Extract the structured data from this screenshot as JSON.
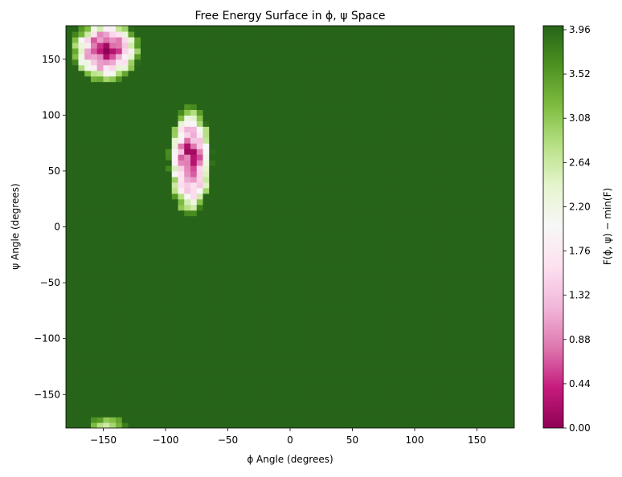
{
  "chart_data": {
    "type": "heatmap",
    "title": "Free Energy Surface in ϕ, ψ Space",
    "xlabel": "ϕ Angle (degrees)",
    "ylabel": "ψ Angle (degrees)",
    "colorbar_label": "F(ϕ, ψ) − min(F)",
    "xlim": [
      -180,
      180
    ],
    "ylim": [
      -180,
      180
    ],
    "xticks": [
      -150,
      -100,
      -50,
      0,
      50,
      100,
      150
    ],
    "yticks": [
      -150,
      -100,
      -50,
      0,
      50,
      100,
      150
    ],
    "xtick_labels": [
      "−150",
      "−100",
      "−50",
      "0",
      "50",
      "100",
      "150"
    ],
    "ytick_labels": [
      "−150",
      "−100",
      "−50",
      "0",
      "50",
      "100",
      "150"
    ],
    "colorbar_ticks": [
      0.0,
      0.44,
      0.88,
      1.32,
      1.76,
      2.2,
      2.64,
      3.08,
      3.52,
      3.96
    ],
    "colorbar_tick_labels": [
      "0.00",
      "0.44",
      "0.88",
      "1.32",
      "1.76",
      "2.20",
      "2.64",
      "3.08",
      "3.52",
      "3.96"
    ],
    "colorbar_range": [
      0.0,
      4.0
    ],
    "colormap": "PiYG",
    "background_value": 4.0,
    "minima": [
      {
        "phi": -148,
        "psi": 158,
        "sigma_phi": 11,
        "sigma_psi": 11,
        "depth": 0.3
      },
      {
        "phi": -80,
        "psi": 60,
        "sigma_phi": 7,
        "sigma_psi": 20,
        "depth": 0.4
      },
      {
        "phi": -145,
        "psi": -180,
        "sigma_phi": 10,
        "sigma_psi": 8,
        "depth": 2.6
      }
    ],
    "colormap_stops": [
      "#8e0152",
      "#c51b7d",
      "#de77ae",
      "#f1b6da",
      "#fde0ef",
      "#f7f7f7",
      "#e6f5d0",
      "#b8e186",
      "#7fbc41",
      "#4d9221",
      "#276419"
    ]
  }
}
